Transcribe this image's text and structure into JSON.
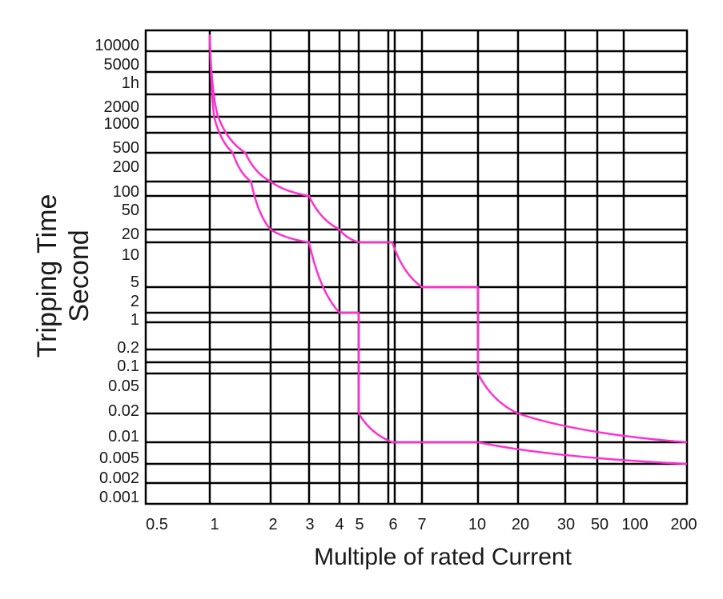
{
  "chart_data": {
    "type": "line",
    "title": "",
    "xlabel": "Multiple of rated Current",
    "ylabel_line1": "Tripping Time",
    "ylabel_line2": "Second",
    "x_ticks": [
      "0.5",
      "1",
      "2",
      "3",
      "4",
      "5",
      "6",
      "7",
      "10",
      "20",
      "30",
      "50",
      "100",
      "200"
    ],
    "y_ticks": [
      "10000",
      "5000",
      "1h",
      "2000",
      "1000",
      "500",
      "200",
      "100",
      "50",
      "20",
      "10",
      "5",
      "2",
      "1",
      "0.2",
      "0.1",
      "0.05",
      "0.02",
      "0.01",
      "0.005",
      "0.002",
      "0.001"
    ],
    "grid": true,
    "line_color": "#ff2fd0",
    "series": [
      {
        "points": [
          [
            1,
            "10000"
          ],
          [
            1.02,
            "1h"
          ],
          [
            1.1,
            "1000"
          ],
          [
            1.5,
            "200"
          ],
          [
            2,
            "100"
          ],
          [
            3,
            "50"
          ],
          [
            4,
            "20"
          ],
          [
            5,
            "10"
          ],
          [
            6,
            "10"
          ],
          [
            7,
            "5"
          ],
          [
            10,
            "5"
          ],
          [
            10,
            "0.05"
          ],
          [
            20,
            "0.02"
          ],
          [
            200,
            "0.01"
          ]
        ]
      },
      {
        "points": [
          [
            1,
            "10000"
          ],
          [
            1.05,
            "1000"
          ],
          [
            1.3,
            "200"
          ],
          [
            1.6,
            "100"
          ],
          [
            2,
            "20"
          ],
          [
            3,
            "10"
          ],
          [
            4,
            "2"
          ],
          [
            5,
            "2"
          ],
          [
            5,
            "0.02"
          ],
          [
            6,
            "0.01"
          ],
          [
            7,
            "0.01"
          ],
          [
            10,
            "0.01"
          ],
          [
            200,
            "0.005"
          ]
        ]
      }
    ]
  }
}
